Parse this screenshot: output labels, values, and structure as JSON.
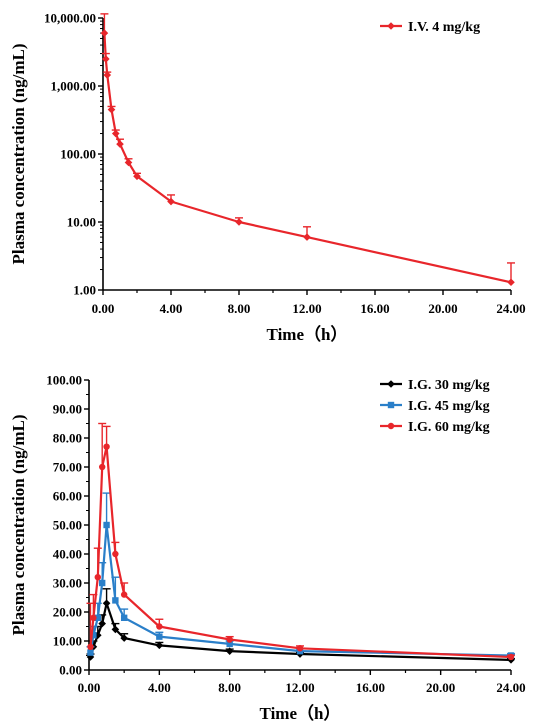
{
  "chart_data": [
    {
      "type": "line",
      "xlabel": "Time（h）",
      "ylabel": "Plasma concentration (ng/mL)",
      "yscale": "log",
      "xlim": [
        0,
        24
      ],
      "ylim": [
        1,
        10000
      ],
      "xticks": [
        "0.00",
        "4.00",
        "8.00",
        "12.00",
        "16.00",
        "20.00",
        "24.00"
      ],
      "yticks": [
        "1.00",
        "10.00",
        "100.00",
        "1,000.00",
        "10,000.00"
      ],
      "legend": "top-right",
      "series": [
        {
          "name": "I.V. 4 mg/kg",
          "color": "#e8262b",
          "marker": "diamond",
          "x": [
            0.0833,
            0.167,
            0.25,
            0.5,
            0.75,
            1,
            1.5,
            2,
            4,
            8,
            12,
            24
          ],
          "y": [
            6000,
            2500,
            1450,
            450,
            200,
            140,
            75,
            47,
            20,
            10,
            6,
            1.3
          ],
          "err": [
            5500,
            500,
            150,
            50,
            25,
            25,
            10,
            5,
            5,
            1.5,
            2.5,
            1.2
          ]
        }
      ]
    },
    {
      "type": "line",
      "xlabel": "Time（h）",
      "ylabel": "Plasma concentration (ng/mL)",
      "xlim": [
        0,
        24
      ],
      "ylim": [
        0,
        100
      ],
      "xticks": [
        "0.00",
        "4.00",
        "8.00",
        "12.00",
        "16.00",
        "20.00",
        "24.00"
      ],
      "yticks": [
        "0.00",
        "10.00",
        "20.00",
        "30.00",
        "40.00",
        "50.00",
        "60.00",
        "70.00",
        "80.00",
        "90.00",
        "100.00"
      ],
      "legend": "top-right",
      "series": [
        {
          "name": "I.G. 30 mg/kg",
          "color": "#000000",
          "marker": "diamond",
          "x": [
            0.0833,
            0.25,
            0.5,
            0.75,
            1,
            1.5,
            2,
            4,
            8,
            12,
            24
          ],
          "y": [
            4.5,
            8,
            12,
            16,
            23,
            14,
            11,
            8.5,
            6.5,
            5.5,
            3.5
          ],
          "err": [
            1,
            2,
            3,
            3,
            5,
            2,
            1.5,
            1,
            0.7,
            0.6,
            0.4
          ]
        },
        {
          "name": "I.G. 45 mg/kg",
          "color": "#2a7fc9",
          "marker": "square",
          "x": [
            0.0833,
            0.25,
            0.5,
            0.75,
            1,
            1.5,
            2,
            4,
            8,
            12,
            24
          ],
          "y": [
            6,
            12,
            18,
            30,
            50,
            24,
            18,
            11.5,
            9,
            6.5,
            5
          ],
          "err": [
            2,
            3,
            5,
            7,
            11,
            8,
            3,
            1.5,
            1,
            0.8,
            0.6
          ]
        },
        {
          "name": "I.G. 60 mg/kg",
          "color": "#e8262b",
          "marker": "circle",
          "x": [
            0.0833,
            0.25,
            0.5,
            0.75,
            1,
            1.5,
            2,
            4,
            8,
            12,
            24
          ],
          "y": [
            8,
            18,
            32,
            70,
            77,
            40,
            26,
            15,
            10.5,
            7.5,
            4.5
          ],
          "err": [
            15,
            8,
            10,
            15,
            7,
            4,
            4,
            2.5,
            1,
            0.8,
            0.6
          ]
        }
      ]
    }
  ]
}
